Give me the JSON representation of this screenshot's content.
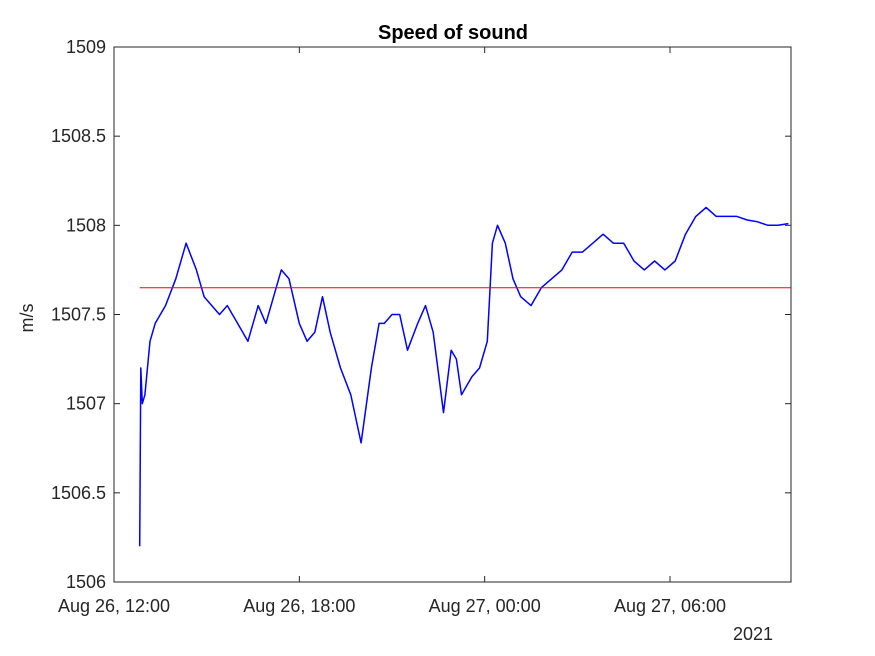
{
  "chart_data": {
    "type": "line",
    "title": "Speed of sound",
    "xlabel": "",
    "ylabel": "m/s",
    "x_axis_year": "2021",
    "xlim": [
      "2021-08-26T12:00",
      "2021-08-27T09:55"
    ],
    "ylim": [
      1506,
      1509
    ],
    "x_ticks": [
      {
        "value": "2021-08-26T12:00",
        "label": "Aug 26, 12:00"
      },
      {
        "value": "2021-08-26T18:00",
        "label": "Aug 26, 18:00"
      },
      {
        "value": "2021-08-27T00:00",
        "label": "Aug 27, 00:00"
      },
      {
        "value": "2021-08-27T06:00",
        "label": "Aug 27, 06:00"
      }
    ],
    "y_ticks": [
      {
        "value": 1506,
        "label": "1506"
      },
      {
        "value": 1506.5,
        "label": "1506.5"
      },
      {
        "value": 1507,
        "label": "1507"
      },
      {
        "value": 1507.5,
        "label": "1507.5"
      },
      {
        "value": 1508,
        "label": "1508"
      },
      {
        "value": 1508.5,
        "label": "1508.5"
      },
      {
        "value": 1509,
        "label": "1509"
      }
    ],
    "grid": false,
    "legend": "none",
    "series": [
      {
        "color": "#0000ff",
        "x": [
          "2021-08-26T12:50",
          "2021-08-26T12:52",
          "2021-08-26T12:55",
          "2021-08-26T13:00",
          "2021-08-26T13:10",
          "2021-08-26T13:20",
          "2021-08-26T13:40",
          "2021-08-26T14:00",
          "2021-08-26T14:20",
          "2021-08-26T14:40",
          "2021-08-26T14:55",
          "2021-08-26T15:10",
          "2021-08-26T15:25",
          "2021-08-26T15:40",
          "2021-08-26T16:00",
          "2021-08-26T16:20",
          "2021-08-26T16:40",
          "2021-08-26T16:55",
          "2021-08-26T17:10",
          "2021-08-26T17:25",
          "2021-08-26T17:40",
          "2021-08-26T18:00",
          "2021-08-26T18:15",
          "2021-08-26T18:30",
          "2021-08-26T18:45",
          "2021-08-26T19:00",
          "2021-08-26T19:20",
          "2021-08-26T19:40",
          "2021-08-26T20:00",
          "2021-08-26T20:20",
          "2021-08-26T20:35",
          "2021-08-26T20:45",
          "2021-08-26T21:00",
          "2021-08-26T21:15",
          "2021-08-26T21:30",
          "2021-08-26T21:50",
          "2021-08-26T22:05",
          "2021-08-26T22:20",
          "2021-08-26T22:40",
          "2021-08-26T22:55",
          "2021-08-26T23:05",
          "2021-08-26T23:15",
          "2021-08-26T23:25",
          "2021-08-26T23:35",
          "2021-08-26T23:50",
          "2021-08-27T00:05",
          "2021-08-27T00:15",
          "2021-08-27T00:25",
          "2021-08-27T00:40",
          "2021-08-27T00:55",
          "2021-08-27T01:10",
          "2021-08-27T01:30",
          "2021-08-27T01:50",
          "2021-08-27T02:10",
          "2021-08-27T02:30",
          "2021-08-27T02:50",
          "2021-08-27T03:10",
          "2021-08-27T03:30",
          "2021-08-27T03:50",
          "2021-08-27T04:10",
          "2021-08-27T04:30",
          "2021-08-27T04:50",
          "2021-08-27T05:10",
          "2021-08-27T05:30",
          "2021-08-27T05:50",
          "2021-08-27T06:10",
          "2021-08-27T06:30",
          "2021-08-27T06:50",
          "2021-08-27T07:10",
          "2021-08-27T07:30",
          "2021-08-27T07:50",
          "2021-08-27T08:10",
          "2021-08-27T08:30",
          "2021-08-27T08:50",
          "2021-08-27T09:10",
          "2021-08-27T09:30",
          "2021-08-27T09:50"
        ],
        "y": [
          1506.2,
          1507.2,
          1507.0,
          1507.05,
          1507.35,
          1507.45,
          1507.55,
          1507.7,
          1507.9,
          1507.75,
          1507.6,
          1507.55,
          1507.5,
          1507.55,
          1507.45,
          1507.35,
          1507.55,
          1507.45,
          1507.6,
          1507.75,
          1507.7,
          1507.45,
          1507.35,
          1507.4,
          1507.6,
          1507.4,
          1507.2,
          1507.05,
          1506.78,
          1507.2,
          1507.45,
          1507.45,
          1507.5,
          1507.5,
          1507.3,
          1507.45,
          1507.55,
          1507.4,
          1506.95,
          1507.3,
          1507.25,
          1507.05,
          1507.1,
          1507.15,
          1507.2,
          1507.35,
          1507.9,
          1508.0,
          1507.9,
          1507.7,
          1507.6,
          1507.55,
          1507.65,
          1507.7,
          1507.75,
          1507.85,
          1507.85,
          1507.9,
          1507.95,
          1507.9,
          1507.9,
          1507.8,
          1507.75,
          1507.8,
          1507.75,
          1507.8,
          1507.95,
          1508.05,
          1508.1,
          1508.05,
          1508.05,
          1508.05,
          1508.03,
          1508.02,
          1508.0,
          1508.0,
          1508.01
        ]
      },
      {
        "color": "#ff0000",
        "x": [
          "2021-08-26T12:50",
          "2021-08-27T09:55"
        ],
        "y": [
          1507.65,
          1507.65
        ]
      }
    ]
  }
}
